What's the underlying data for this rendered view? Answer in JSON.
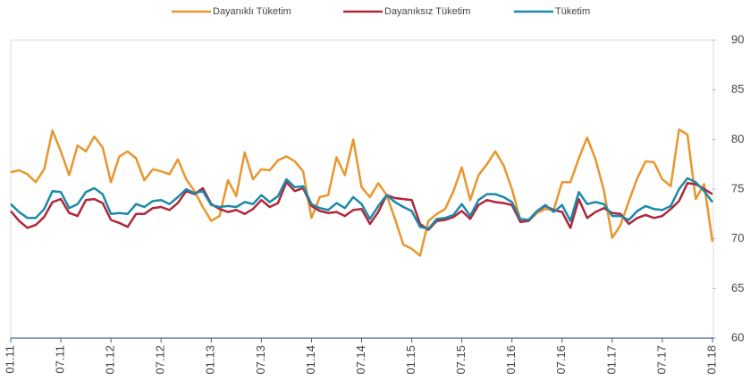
{
  "chart_data": {
    "type": "line",
    "categories": [
      "01.11",
      null,
      null,
      null,
      null,
      null,
      "07.11",
      null,
      null,
      null,
      null,
      null,
      "01.12",
      null,
      null,
      null,
      null,
      null,
      "07.12",
      null,
      null,
      null,
      null,
      null,
      "01.13",
      null,
      null,
      null,
      null,
      null,
      "07.13",
      null,
      null,
      null,
      null,
      null,
      "01.14",
      null,
      null,
      null,
      null,
      null,
      "07.14",
      null,
      null,
      null,
      null,
      null,
      "01.15",
      null,
      null,
      null,
      null,
      null,
      "07.15",
      null,
      null,
      null,
      null,
      null,
      "01.16",
      null,
      null,
      null,
      null,
      null,
      "07.16",
      null,
      null,
      null,
      null,
      null,
      "01.17",
      null,
      null,
      null,
      null,
      null,
      "07.17",
      null,
      null,
      null,
      null,
      null,
      "01.18"
    ],
    "series": [
      {
        "name": "Dayanıklı Tüketim",
        "color": "#e8962e",
        "values": [
          76.7,
          76.9,
          76.5,
          75.7,
          77.0,
          80.9,
          78.8,
          76.4,
          79.4,
          78.8,
          80.3,
          79.2,
          75.7,
          78.3,
          78.8,
          78.1,
          75.9,
          77.0,
          76.8,
          76.5,
          78.0,
          76.0,
          74.8,
          73.2,
          71.8,
          72.3,
          75.9,
          74.3,
          78.7,
          76.0,
          77.0,
          76.9,
          77.9,
          78.3,
          77.8,
          76.8,
          72.1,
          74.2,
          74.4,
          78.2,
          76.4,
          80.0,
          75.2,
          74.2,
          75.6,
          74.4,
          72.0,
          69.4,
          69.0,
          68.3,
          71.8,
          72.5,
          73.0,
          74.8,
          77.2,
          73.9,
          76.4,
          77.5,
          78.8,
          77.4,
          75.0,
          71.9,
          71.8,
          72.6,
          73.0,
          72.9,
          75.7,
          75.7,
          78.1,
          80.2,
          78.0,
          74.9,
          70.1,
          71.4,
          73.8,
          76.1,
          77.8,
          77.7,
          76.0,
          75.3,
          81.0,
          80.5,
          74.0,
          75.5,
          69.7
        ]
      },
      {
        "name": "Dayanıksız Tüketim",
        "color": "#b0263a",
        "values": [
          72.8,
          71.8,
          71.1,
          71.4,
          72.2,
          73.7,
          74.0,
          72.6,
          72.3,
          73.9,
          74.0,
          73.6,
          71.9,
          71.6,
          71.2,
          72.5,
          72.5,
          73.1,
          73.2,
          72.9,
          73.6,
          74.8,
          74.5,
          75.1,
          73.5,
          73.0,
          72.7,
          72.9,
          72.5,
          73.0,
          73.9,
          73.2,
          73.6,
          75.7,
          74.8,
          75.1,
          73.3,
          72.8,
          72.6,
          72.7,
          72.3,
          72.9,
          73.0,
          71.5,
          72.7,
          74.4,
          74.1,
          74.0,
          73.9,
          71.5,
          70.9,
          71.8,
          71.9,
          72.2,
          72.8,
          72.0,
          73.4,
          73.9,
          73.7,
          73.6,
          73.4,
          71.7,
          71.8,
          72.8,
          73.3,
          72.9,
          72.7,
          71.1,
          74.0,
          72.1,
          72.7,
          73.1,
          72.6,
          72.5,
          71.5,
          72.1,
          72.4,
          72.1,
          72.3,
          73.0,
          73.8,
          75.6,
          75.5,
          75.0,
          74.5
        ]
      },
      {
        "name": "Tüketim",
        "color": "#1a8aa8",
        "values": [
          73.5,
          72.7,
          72.1,
          72.1,
          73.0,
          74.8,
          74.7,
          73.1,
          73.5,
          74.7,
          75.1,
          74.5,
          72.5,
          72.6,
          72.5,
          73.5,
          73.2,
          73.8,
          73.9,
          73.5,
          74.2,
          75.0,
          74.6,
          74.8,
          73.4,
          73.2,
          73.3,
          73.2,
          73.7,
          73.5,
          74.4,
          73.7,
          74.3,
          76.0,
          75.2,
          75.3,
          73.5,
          73.1,
          72.9,
          73.6,
          73.1,
          74.2,
          73.5,
          72.0,
          73.3,
          74.4,
          73.7,
          73.2,
          72.8,
          71.2,
          71.0,
          72.0,
          72.1,
          72.4,
          73.5,
          72.3,
          73.9,
          74.5,
          74.5,
          74.2,
          73.7,
          72.0,
          71.9,
          72.8,
          73.4,
          72.7,
          73.4,
          71.8,
          74.7,
          73.5,
          73.7,
          73.5,
          72.3,
          72.3,
          71.9,
          72.8,
          73.3,
          73.0,
          72.9,
          73.3,
          75.0,
          76.1,
          75.7,
          74.8,
          73.7
        ]
      }
    ],
    "ylim": [
      60,
      90
    ],
    "yticks": [
      60,
      65,
      70,
      75,
      80,
      85,
      90
    ],
    "legend": "top"
  }
}
